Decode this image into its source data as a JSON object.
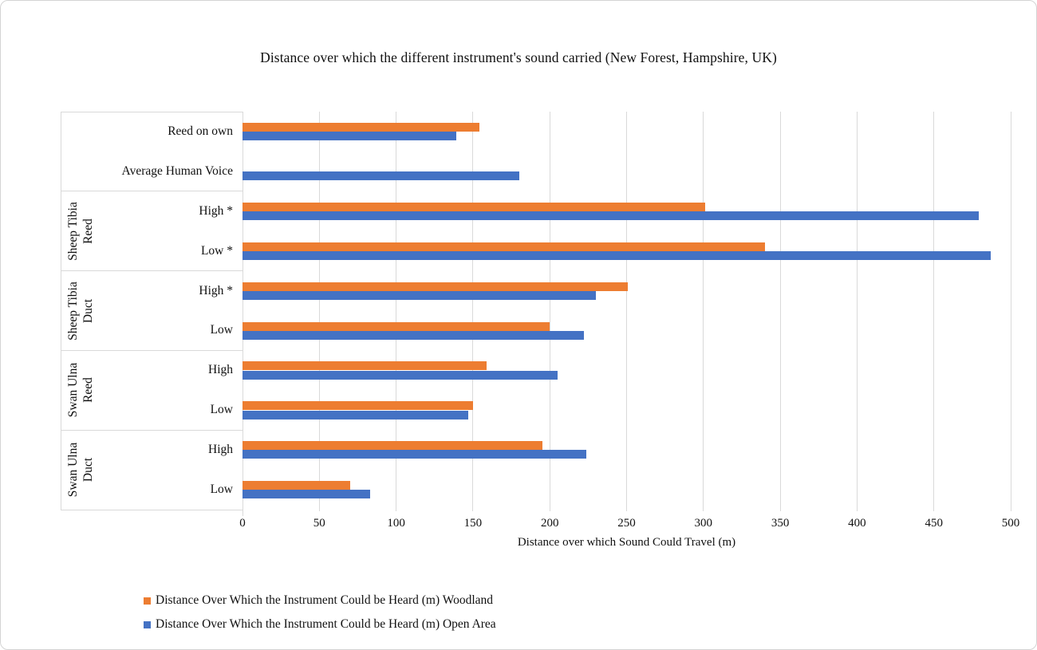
{
  "chart_data": {
    "type": "bar",
    "orientation": "horizontal",
    "title": "Distance over which the different instrument's sound carried (New Forest, Hampshire, UK)",
    "xlabel": "Distance over which Sound Could Travel (m)",
    "xlim": [
      0,
      500
    ],
    "xticks": [
      0,
      50,
      100,
      150,
      200,
      250,
      300,
      350,
      400,
      450,
      500
    ],
    "grid": true,
    "legend_position": "bottom-left",
    "series": [
      {
        "name": "Distance Over Which the Instrument Could be Heard (m) Woodland",
        "key": "woodland",
        "color": "#ED7D31"
      },
      {
        "name": "Distance Over Which the Instrument Could be Heard (m) Open Area",
        "key": "open_area",
        "color": "#4472C4"
      }
    ],
    "rows": [
      {
        "label": "Reed on own",
        "woodland": 154,
        "open_area": 139
      },
      {
        "label": "Average Human Voice",
        "woodland": null,
        "open_area": 180
      },
      {
        "label": "High *",
        "woodland": 301,
        "open_area": 479
      },
      {
        "label": "Low *",
        "woodland": 340,
        "open_area": 487
      },
      {
        "label": "High *",
        "woodland": 251,
        "open_area": 230
      },
      {
        "label": "Low",
        "woodland": 200,
        "open_area": 222
      },
      {
        "label": "High",
        "woodland": 159,
        "open_area": 205
      },
      {
        "label": "Low",
        "woodland": 150,
        "open_area": 147
      },
      {
        "label": "High",
        "woodland": 195,
        "open_area": 224
      },
      {
        "label": "Low",
        "woodland": 70,
        "open_area": 83
      }
    ],
    "groups": [
      {
        "lines": [
          "Sheep Tibia",
          "Reed"
        ],
        "start": 2,
        "end": 3
      },
      {
        "lines": [
          "Sheep Tibia",
          "Duct"
        ],
        "start": 4,
        "end": 5
      },
      {
        "lines": [
          "Swan Ulna",
          "Reed"
        ],
        "start": 6,
        "end": 7
      },
      {
        "lines": [
          "Swan Ulna",
          "Duct"
        ],
        "start": 8,
        "end": 9
      }
    ],
    "colors": {
      "woodland": "#ED7D31",
      "open_area": "#4472C4",
      "gridline": "#D9D9D9",
      "border": "#D9D9D9",
      "text": "#111111"
    }
  }
}
